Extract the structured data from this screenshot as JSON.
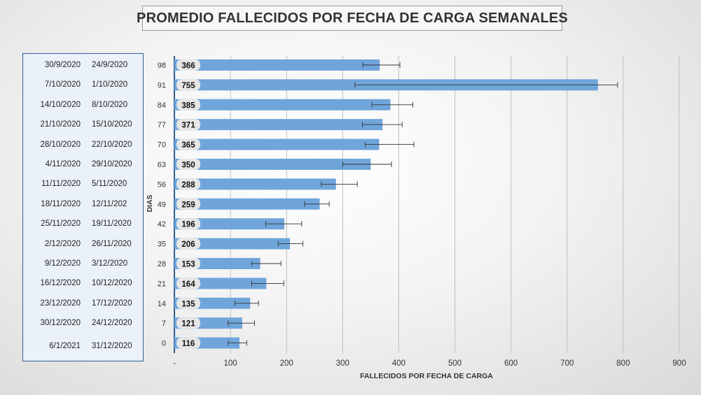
{
  "chart_data": {
    "type": "bar",
    "orientation": "horizontal",
    "title": "PROMEDIO FALLECIDOS POR FECHA DE CARGA SEMANALES",
    "xlabel": "FALLECIDOS POR FECHA DE CARGA",
    "ylabel": "DIAS",
    "xlim": [
      0,
      900
    ],
    "xticks": [
      "-",
      "100",
      "200",
      "300",
      "400",
      "500",
      "600",
      "700",
      "800",
      "900"
    ],
    "xtick_values": [
      0,
      100,
      200,
      300,
      400,
      500,
      600,
      700,
      800,
      900
    ],
    "grid": "vertical",
    "bar_color": "#6fa5db",
    "categories": [
      "98",
      "91",
      "84",
      "77",
      "70",
      "63",
      "56",
      "49",
      "42",
      "35",
      "28",
      "21",
      "14",
      "7",
      "0"
    ],
    "values": [
      366,
      755,
      385,
      371,
      365,
      350,
      288,
      259,
      196,
      206,
      153,
      164,
      135,
      121,
      116
    ],
    "value_labels": [
      "366",
      "755",
      "385",
      "371",
      "365",
      "350",
      "288",
      "259",
      "196",
      "206",
      "153",
      "164",
      "135",
      "121",
      "116"
    ],
    "error_low": [
      336,
      322,
      352,
      335,
      340,
      300,
      262,
      232,
      163,
      185,
      138,
      138,
      108,
      96,
      96
    ],
    "error_high": [
      402,
      790,
      425,
      406,
      427,
      387,
      326,
      276,
      227,
      229,
      190,
      195,
      150,
      143,
      129
    ],
    "date_ranges": [
      {
        "end": "30/9/2020",
        "start": "24/9/2020"
      },
      {
        "end": "7/10/2020",
        "start": "1/10/2020"
      },
      {
        "end": "14/10/2020",
        "start": "8/10/2020"
      },
      {
        "end": "21/10/2020",
        "start": "15/10/2020"
      },
      {
        "end": "28/10/2020",
        "start": "22/10/2020"
      },
      {
        "end": "4/11/2020",
        "start": "29/10/2020"
      },
      {
        "end": "11/11/2020",
        "start": "5/11/2020"
      },
      {
        "end": "18/11/2020",
        "start": "12/11/202"
      },
      {
        "end": "25/11/2020",
        "start": "19/11/2020"
      },
      {
        "end": "2/12/2020",
        "start": "26/11/2020"
      },
      {
        "end": "9/12/2020",
        "start": "3/12/2020"
      },
      {
        "end": "16/12/2020",
        "start": "10/12/2020"
      },
      {
        "end": "23/12/2020",
        "start": "17/12/2020"
      },
      {
        "end": "30/12/2020",
        "start": "24/12/2020"
      },
      {
        "end": "6/1/2021",
        "start": "31/12/2020"
      }
    ]
  }
}
